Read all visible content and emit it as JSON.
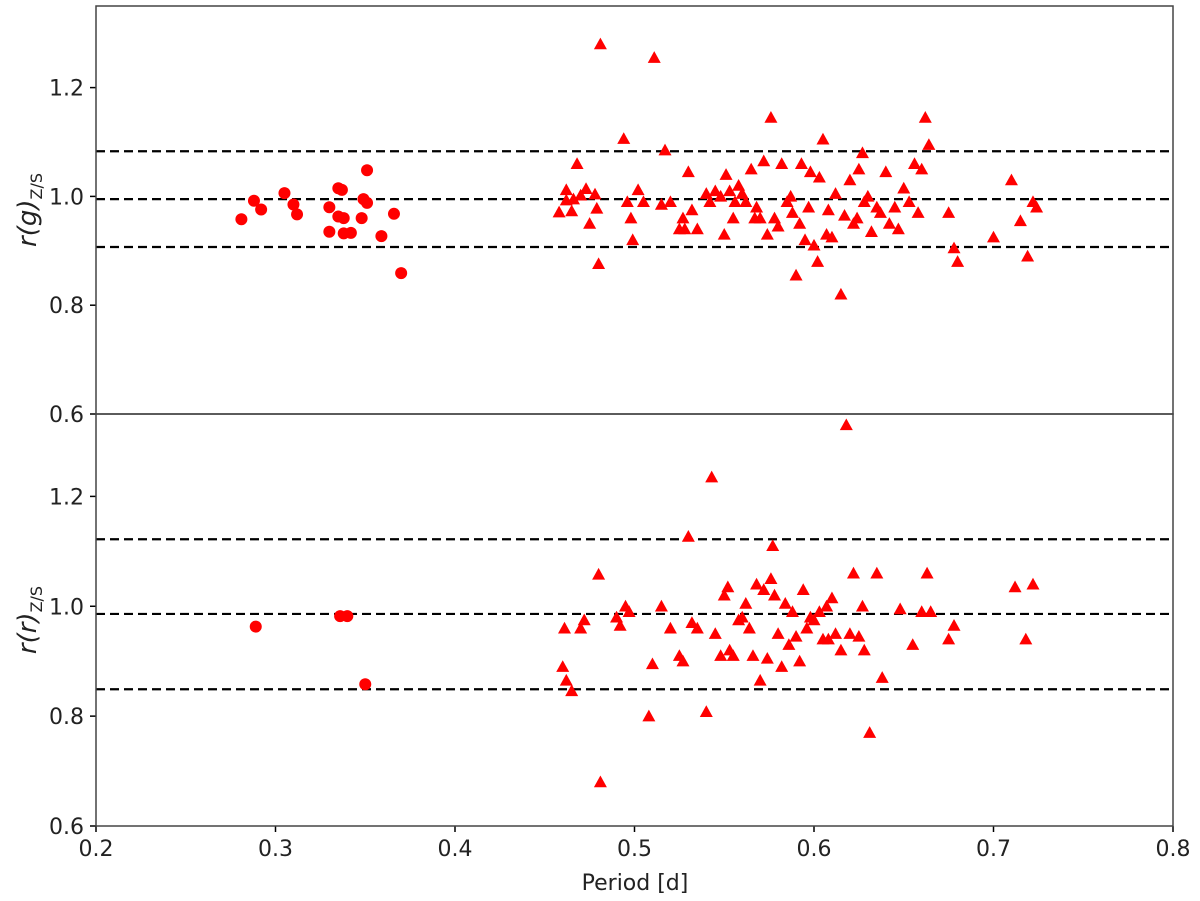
{
  "chart_data": [
    {
      "type": "scatter",
      "panel": "top",
      "ylabel": {
        "main": "r(g)",
        "sub": "Z/S"
      },
      "xlabel": "",
      "xlim": [
        0.2,
        0.8
      ],
      "ylim": [
        0.6,
        1.35
      ],
      "yticks": [
        0.6,
        0.8,
        1.0,
        1.2
      ],
      "ytick_labels": [
        "0.6",
        "0.8",
        "1.0",
        "1.2"
      ],
      "hlines": [
        0.907,
        0.995,
        1.083
      ],
      "marker_color": "#ff0000",
      "series": [
        {
          "marker": "circle",
          "points": [
            [
              0.281,
              0.958
            ],
            [
              0.288,
              0.992
            ],
            [
              0.292,
              0.976
            ],
            [
              0.305,
              1.006
            ],
            [
              0.31,
              0.985
            ],
            [
              0.312,
              0.967
            ],
            [
              0.33,
              0.935
            ],
            [
              0.33,
              0.98
            ],
            [
              0.335,
              1.015
            ],
            [
              0.337,
              1.012
            ],
            [
              0.335,
              0.963
            ],
            [
              0.338,
              0.96
            ],
            [
              0.338,
              0.932
            ],
            [
              0.342,
              0.933
            ],
            [
              0.348,
              0.96
            ],
            [
              0.349,
              0.995
            ],
            [
              0.351,
              0.988
            ],
            [
              0.351,
              1.048
            ],
            [
              0.359,
              0.927
            ],
            [
              0.366,
              0.968
            ],
            [
              0.37,
              0.859
            ]
          ]
        },
        {
          "marker": "triangle",
          "points": [
            [
              0.458,
              0.971
            ],
            [
              0.462,
              0.993
            ],
            [
              0.462,
              1.012
            ],
            [
              0.465,
              0.973
            ],
            [
              0.466,
              0.995
            ],
            [
              0.468,
              1.06
            ],
            [
              0.47,
              1.002
            ],
            [
              0.473,
              1.014
            ],
            [
              0.475,
              0.95
            ],
            [
              0.478,
              1.004
            ],
            [
              0.479,
              0.978
            ],
            [
              0.48,
              0.876
            ],
            [
              0.481,
              1.28
            ],
            [
              0.494,
              1.106
            ],
            [
              0.496,
              0.99
            ],
            [
              0.498,
              0.96
            ],
            [
              0.499,
              0.92
            ],
            [
              0.502,
              1.012
            ],
            [
              0.505,
              0.99
            ],
            [
              0.511,
              1.255
            ],
            [
              0.515,
              0.985
            ],
            [
              0.517,
              1.085
            ],
            [
              0.52,
              0.99
            ],
            [
              0.525,
              0.94
            ],
            [
              0.527,
              0.96
            ],
            [
              0.528,
              0.94
            ],
            [
              0.53,
              1.045
            ],
            [
              0.532,
              0.975
            ],
            [
              0.535,
              0.94
            ],
            [
              0.54,
              1.005
            ],
            [
              0.542,
              0.99
            ],
            [
              0.545,
              1.01
            ],
            [
              0.548,
              1.0
            ],
            [
              0.55,
              0.93
            ],
            [
              0.551,
              1.04
            ],
            [
              0.553,
              1.01
            ],
            [
              0.555,
              0.96
            ],
            [
              0.556,
              0.99
            ],
            [
              0.558,
              1.02
            ],
            [
              0.56,
              1.005
            ],
            [
              0.562,
              0.99
            ],
            [
              0.565,
              1.05
            ],
            [
              0.567,
              0.96
            ],
            [
              0.568,
              0.98
            ],
            [
              0.57,
              0.96
            ],
            [
              0.572,
              1.065
            ],
            [
              0.574,
              0.93
            ],
            [
              0.576,
              1.145
            ],
            [
              0.578,
              0.96
            ],
            [
              0.58,
              0.945
            ],
            [
              0.582,
              1.06
            ],
            [
              0.585,
              0.99
            ],
            [
              0.587,
              1.0
            ],
            [
              0.588,
              0.97
            ],
            [
              0.59,
              0.855
            ],
            [
              0.592,
              0.95
            ],
            [
              0.593,
              1.06
            ],
            [
              0.595,
              0.92
            ],
            [
              0.597,
              0.98
            ],
            [
              0.598,
              1.045
            ],
            [
              0.6,
              0.91
            ],
            [
              0.602,
              0.88
            ],
            [
              0.603,
              1.035
            ],
            [
              0.605,
              1.105
            ],
            [
              0.607,
              0.93
            ],
            [
              0.608,
              0.975
            ],
            [
              0.61,
              0.925
            ],
            [
              0.612,
              1.005
            ],
            [
              0.615,
              0.82
            ],
            [
              0.617,
              0.965
            ],
            [
              0.62,
              1.03
            ],
            [
              0.622,
              0.95
            ],
            [
              0.624,
              0.96
            ],
            [
              0.625,
              1.05
            ],
            [
              0.627,
              1.08
            ],
            [
              0.628,
              0.99
            ],
            [
              0.63,
              1.0
            ],
            [
              0.632,
              0.935
            ],
            [
              0.635,
              0.98
            ],
            [
              0.637,
              0.97
            ],
            [
              0.64,
              1.045
            ],
            [
              0.642,
              0.95
            ],
            [
              0.645,
              0.98
            ],
            [
              0.647,
              0.94
            ],
            [
              0.65,
              1.015
            ],
            [
              0.653,
              0.99
            ],
            [
              0.656,
              1.06
            ],
            [
              0.658,
              0.97
            ],
            [
              0.66,
              1.05
            ],
            [
              0.662,
              1.145
            ],
            [
              0.664,
              1.095
            ],
            [
              0.675,
              0.97
            ],
            [
              0.678,
              0.905
            ],
            [
              0.68,
              0.88
            ],
            [
              0.7,
              0.925
            ],
            [
              0.71,
              1.03
            ],
            [
              0.715,
              0.955
            ],
            [
              0.719,
              0.89
            ],
            [
              0.722,
              0.99
            ],
            [
              0.724,
              0.98
            ]
          ]
        }
      ]
    },
    {
      "type": "scatter",
      "panel": "bottom",
      "ylabel": {
        "main": "r(r)",
        "sub": "Z/S"
      },
      "xlabel": "Period [d]",
      "xlim": [
        0.2,
        0.8
      ],
      "ylim": [
        0.6,
        1.35
      ],
      "yticks": [
        0.6,
        0.8,
        1.0,
        1.2
      ],
      "ytick_labels": [
        "0.6",
        "0.8",
        "1.0",
        "1.2"
      ],
      "xticks": [
        0.2,
        0.3,
        0.4,
        0.5,
        0.6,
        0.7,
        0.8
      ],
      "xtick_labels": [
        "0.2",
        "0.3",
        "0.4",
        "0.5",
        "0.6",
        "0.7",
        "0.8"
      ],
      "hlines": [
        0.849,
        0.986,
        1.122
      ],
      "marker_color": "#ff0000",
      "series": [
        {
          "marker": "circle",
          "points": [
            [
              0.289,
              0.963
            ],
            [
              0.336,
              0.982
            ],
            [
              0.34,
              0.982
            ],
            [
              0.35,
              0.858
            ]
          ]
        },
        {
          "marker": "triangle",
          "points": [
            [
              0.46,
              0.89
            ],
            [
              0.461,
              0.96
            ],
            [
              0.462,
              0.865
            ],
            [
              0.465,
              0.846
            ],
            [
              0.47,
              0.96
            ],
            [
              0.472,
              0.975
            ],
            [
              0.48,
              1.058
            ],
            [
              0.481,
              0.68
            ],
            [
              0.49,
              0.98
            ],
            [
              0.492,
              0.965
            ],
            [
              0.495,
              1.0
            ],
            [
              0.497,
              0.99
            ],
            [
              0.508,
              0.8
            ],
            [
              0.51,
              0.895
            ],
            [
              0.515,
              1.0
            ],
            [
              0.52,
              0.96
            ],
            [
              0.525,
              0.91
            ],
            [
              0.527,
              0.9
            ],
            [
              0.53,
              1.127
            ],
            [
              0.532,
              0.97
            ],
            [
              0.535,
              0.96
            ],
            [
              0.54,
              0.808
            ],
            [
              0.543,
              1.235
            ],
            [
              0.545,
              0.95
            ],
            [
              0.548,
              0.91
            ],
            [
              0.55,
              1.02
            ],
            [
              0.552,
              1.035
            ],
            [
              0.553,
              0.92
            ],
            [
              0.555,
              0.91
            ],
            [
              0.558,
              0.975
            ],
            [
              0.56,
              0.98
            ],
            [
              0.562,
              1.005
            ],
            [
              0.564,
              0.96
            ],
            [
              0.566,
              0.91
            ],
            [
              0.568,
              1.04
            ],
            [
              0.57,
              0.865
            ],
            [
              0.572,
              1.03
            ],
            [
              0.574,
              0.905
            ],
            [
              0.576,
              1.05
            ],
            [
              0.577,
              1.11
            ],
            [
              0.578,
              1.02
            ],
            [
              0.58,
              0.95
            ],
            [
              0.582,
              0.89
            ],
            [
              0.584,
              1.005
            ],
            [
              0.586,
              0.93
            ],
            [
              0.588,
              0.99
            ],
            [
              0.59,
              0.945
            ],
            [
              0.592,
              0.9
            ],
            [
              0.594,
              1.03
            ],
            [
              0.596,
              0.96
            ],
            [
              0.598,
              0.98
            ],
            [
              0.6,
              0.975
            ],
            [
              0.603,
              0.99
            ],
            [
              0.605,
              0.94
            ],
            [
              0.607,
              1.0
            ],
            [
              0.608,
              0.94
            ],
            [
              0.61,
              1.015
            ],
            [
              0.612,
              0.95
            ],
            [
              0.615,
              0.92
            ],
            [
              0.618,
              1.33
            ],
            [
              0.62,
              0.95
            ],
            [
              0.622,
              1.06
            ],
            [
              0.625,
              0.945
            ],
            [
              0.627,
              1.0
            ],
            [
              0.628,
              0.92
            ],
            [
              0.631,
              0.77
            ],
            [
              0.635,
              1.06
            ],
            [
              0.638,
              0.87
            ],
            [
              0.648,
              0.995
            ],
            [
              0.655,
              0.93
            ],
            [
              0.66,
              0.99
            ],
            [
              0.663,
              1.06
            ],
            [
              0.665,
              0.99
            ],
            [
              0.675,
              0.94
            ],
            [
              0.678,
              0.965
            ],
            [
              0.712,
              1.035
            ],
            [
              0.718,
              0.94
            ],
            [
              0.722,
              1.04
            ]
          ]
        }
      ]
    }
  ]
}
